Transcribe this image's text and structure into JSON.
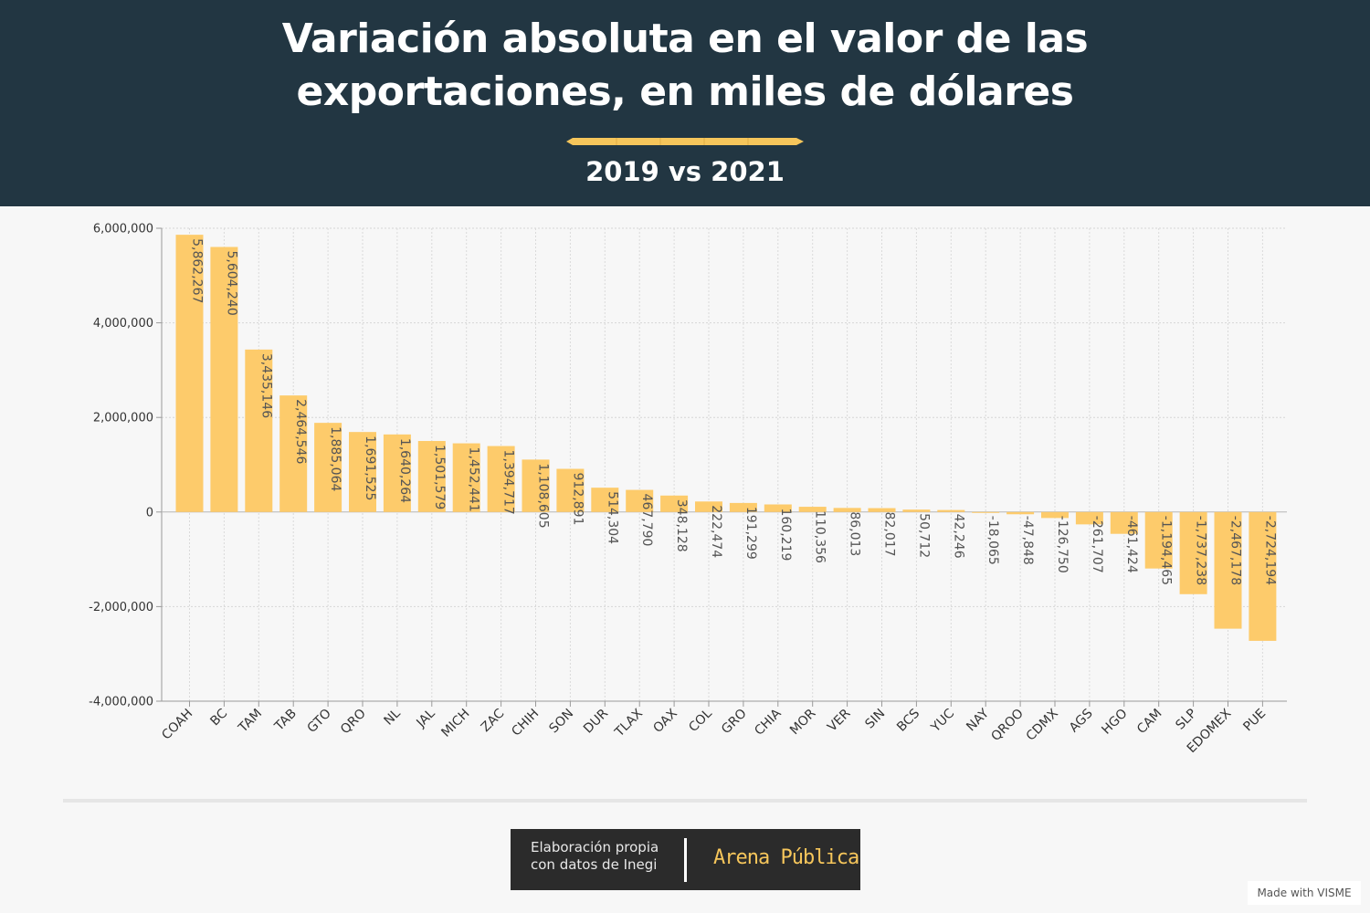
{
  "header": {
    "title_line1": "Variación absoluta en el valor de las",
    "title_line2": "exportaciones, en miles de dólares",
    "subtitle": "2019 vs 2021"
  },
  "chart_data": {
    "type": "bar",
    "title": "Variación absoluta en el valor de las exportaciones, en miles de dólares",
    "subtitle": "2019 vs 2021",
    "categories": [
      "COAH",
      "BC",
      "TAM",
      "TAB",
      "GTO",
      "QRO",
      "NL",
      "JAL",
      "MICH",
      "ZAC",
      "CHIH",
      "SON",
      "DUR",
      "TLAX",
      "OAX",
      "COL",
      "GRO",
      "CHIA",
      "MOR",
      "VER",
      "SIN",
      "BCS",
      "YUC",
      "NAY",
      "QROO",
      "CDMX",
      "AGS",
      "HGO",
      "CAM",
      "SLP",
      "EDOMEX",
      "PUE"
    ],
    "values": [
      5862267,
      5604240,
      3435146,
      2464546,
      1885064,
      1691525,
      1640264,
      1501579,
      1452441,
      1394717,
      1108605,
      912891,
      514304,
      467790,
      348128,
      222474,
      191299,
      160219,
      110356,
      86013,
      82017,
      50712,
      42246,
      -18065,
      -47848,
      -126750,
      -261707,
      -461424,
      -1194465,
      -1737238,
      -2467178,
      -2724194
    ],
    "data_labels": [
      "5,862,267",
      "5,604,240",
      "3,435,146",
      "2,464,546",
      "1,885,064",
      "1,691,525",
      "1,640,264",
      "1,501,579",
      "1,452,441",
      "1,394,717",
      "1,108,605",
      "912,891",
      "514,304",
      "467,790",
      "348,128",
      "222,474",
      "191,299",
      "160,219",
      "110,356",
      "86,013",
      "82,017",
      "50,712",
      "42,246",
      "-18,065",
      "-47,848",
      "-126,750",
      "-261,707",
      "-461,424",
      "-1,194,465",
      "-1,737,238",
      "-2,467,178",
      "-2,724,194"
    ],
    "ylim": [
      -4000000,
      6000000
    ],
    "yticks": [
      6000000,
      4000000,
      2000000,
      0,
      -2000000,
      -4000000
    ],
    "ytick_labels": [
      "6,000,000",
      "4,000,000",
      "2,000,000",
      "0",
      "-2,000,000",
      "-4,000,000"
    ],
    "xlabel": "",
    "ylabel": "",
    "grid": true,
    "legend": "none",
    "bar_color": "#fdcb6b"
  },
  "footer": {
    "credit_line1": "Elaboración propia",
    "credit_line2": "con datos de Inegi",
    "brand_part1": "Arena ",
    "brand_part2": "Pública",
    "made_with": "Made with VISME"
  },
  "colors": {
    "header_bg": "#223642",
    "accent": "#f6c65b",
    "background": "#f7f7f7"
  }
}
